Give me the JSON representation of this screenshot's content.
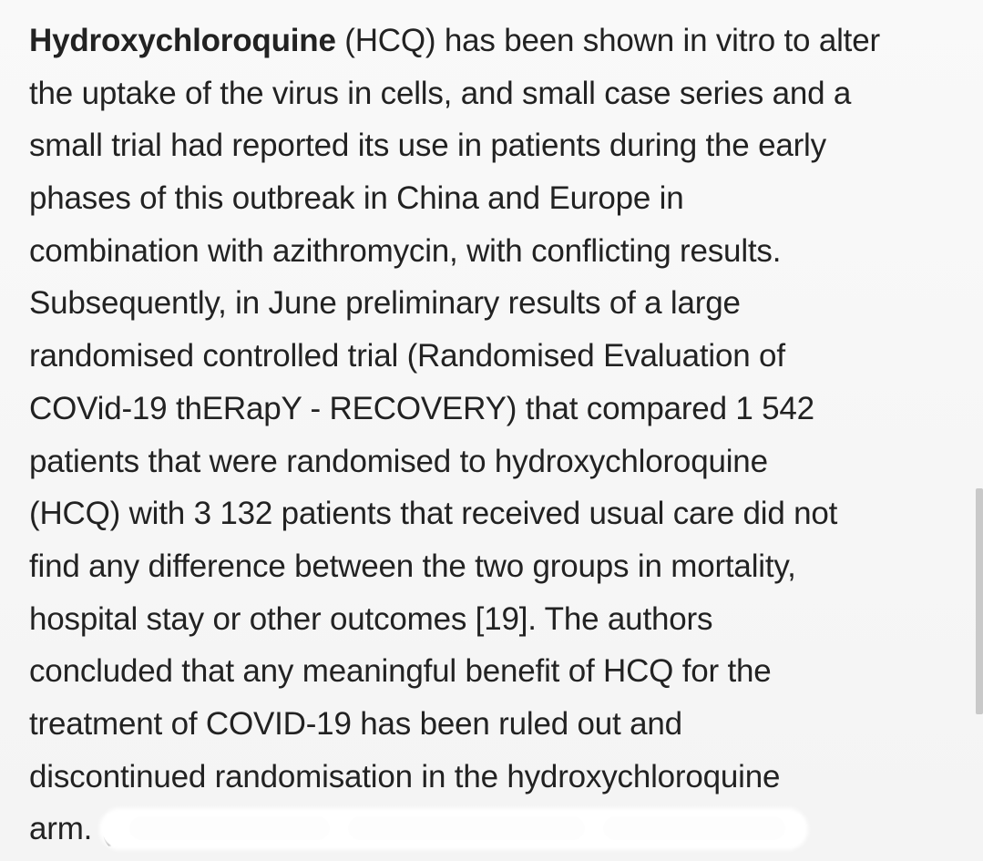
{
  "paragraph": {
    "lines": [
      {
        "bold": "Hydroxychloroquine",
        "rest": " (HCQ) has been shown in vitro to alter"
      },
      {
        "text": "the uptake of the virus in cells, and small case series and a"
      },
      {
        "text": "small trial had reported its use in patients during the early"
      },
      {
        "text": "phases of this outbreak in China and Europe in"
      },
      {
        "text": "combination with azithromycin, with conflicting results."
      },
      {
        "text": "Subsequently, in June preliminary results of a large"
      },
      {
        "text": "randomised controlled trial (Randomised Evaluation of"
      },
      {
        "text": "COVid-19 thERapY - RECOVERY) that compared 1 542"
      },
      {
        "text": "patients that were randomised to hydroxychloroquine"
      },
      {
        "text": "(HCQ) with 3 132 patients that received usual care did not"
      },
      {
        "text": "find any difference between the two groups in mortality,"
      },
      {
        "text": "hospital stay or other outcomes [19]. The authors"
      },
      {
        "text": "concluded that any meaningful benefit of HCQ for the"
      },
      {
        "text": "treatment of COVID-19 has been ruled out and"
      },
      {
        "text": "discontinued randomisation in the hydroxychloroquine"
      },
      {
        "text": "arm. ( ."
      }
    ]
  }
}
